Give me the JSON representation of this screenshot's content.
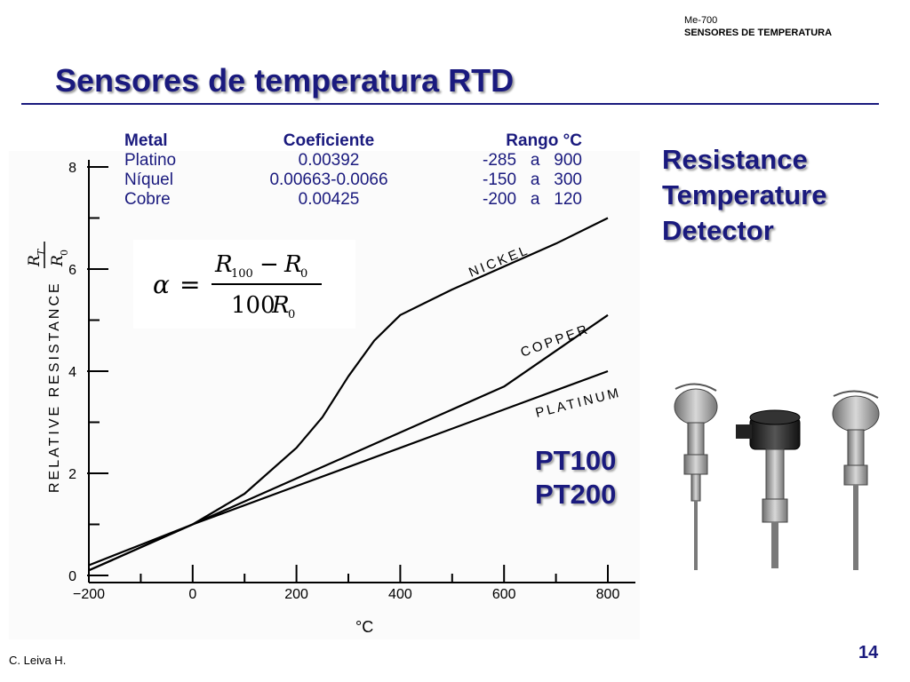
{
  "header": {
    "course_code": "Me-700",
    "course_name": "SENSORES DE TEMPERATURA"
  },
  "title": "Sensores de temperatura RTD",
  "side_title": [
    "Resistance",
    "Temperature",
    "Detector"
  ],
  "pt_labels": [
    "PT100",
    "PT200"
  ],
  "metals_table": {
    "headers": [
      "Metal",
      "Coeficiente",
      "Rango °C"
    ],
    "rows": [
      [
        "Platino",
        "0.00392",
        "-285   a   900"
      ],
      [
        "Níquel",
        "0.00663-0.0066",
        "-150   a   300"
      ],
      [
        "Cobre",
        "0.00425",
        "-200   a   120"
      ]
    ]
  },
  "formula": {
    "lhs": "α",
    "eq": "=",
    "numerator_a": "R",
    "numerator_a_sub": "100",
    "minus": "−",
    "numerator_b": "R",
    "numerator_b_sub": "0",
    "denominator": "100",
    "denominator_r": "R",
    "denominator_sub": "0"
  },
  "footer": {
    "author": "C. Leiva H.",
    "page": "14"
  },
  "chart_data": {
    "type": "line",
    "xlabel": "°C",
    "ylabel": "RELATIVE RESISTANCE",
    "ylabel_ratio": {
      "num": "R",
      "num_sub": "T",
      "den": "R",
      "den_sub": "0"
    },
    "xlim": [
      -200,
      850
    ],
    "ylim": [
      0,
      8
    ],
    "x_ticks": [
      -200,
      0,
      200,
      400,
      600,
      800
    ],
    "x_tick_labels": [
      "−200",
      "0",
      "200",
      "400",
      "600",
      "800"
    ],
    "y_ticks": [
      0,
      2,
      4,
      6,
      8
    ],
    "y_tick_labels": [
      "0",
      "2",
      "4",
      "6",
      "8"
    ],
    "series": [
      {
        "name": "NICKEL",
        "x": [
          -200,
          -100,
          0,
          100,
          200,
          250,
          300,
          350,
          400,
          450,
          500,
          600,
          700,
          800
        ],
        "y": [
          0.2,
          0.6,
          1.0,
          1.6,
          2.5,
          3.1,
          3.9,
          4.6,
          5.1,
          5.35,
          5.6,
          6.05,
          6.5,
          7.0
        ]
      },
      {
        "name": "COPPER",
        "x": [
          -200,
          0,
          200,
          400,
          600,
          800
        ],
        "y": [
          0.1,
          1.0,
          1.9,
          2.8,
          3.7,
          5.1
        ]
      },
      {
        "name": "PLATINUM",
        "x": [
          -200,
          0,
          200,
          400,
          600,
          800
        ],
        "y": [
          0.1,
          1.0,
          1.75,
          2.5,
          3.25,
          4.0
        ]
      }
    ]
  },
  "photos": [
    "rtd-sensor-photo-1",
    "rtd-sensor-photo-2",
    "rtd-sensor-photo-3"
  ]
}
